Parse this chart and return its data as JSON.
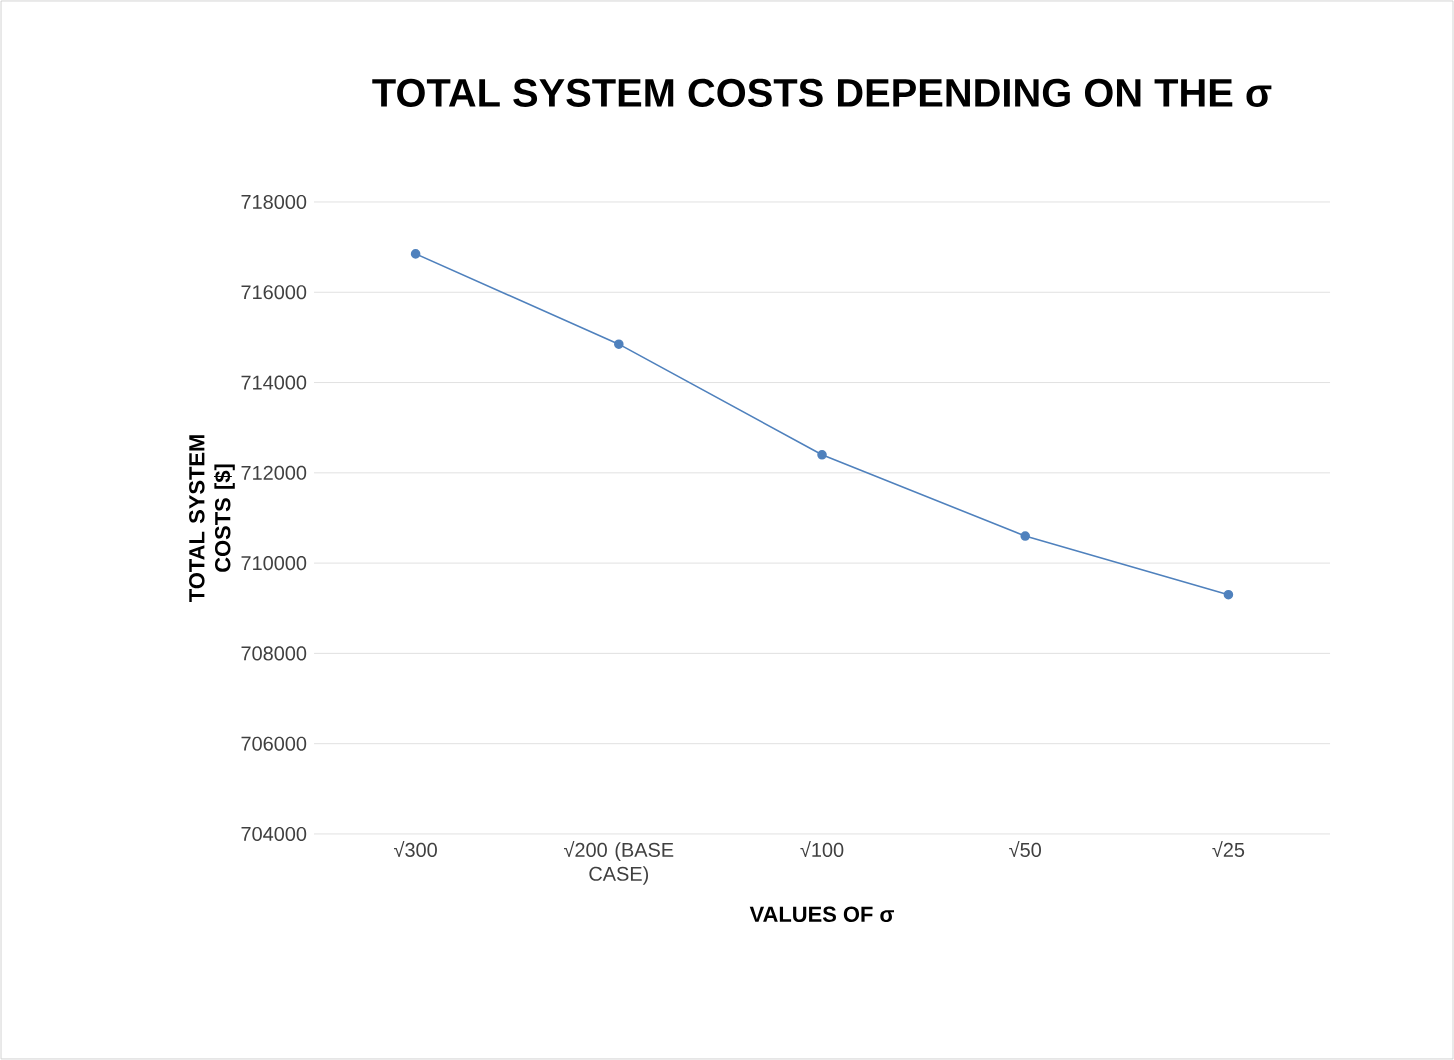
{
  "chart_data": {
    "type": "line",
    "title": "TOTAL SYSTEM COSTS DEPENDING ON THE σ",
    "xlabel": "VALUES OF σ",
    "ylabel": "TOTAL SYSTEM COSTS [$]",
    "categories": [
      "√300",
      "√200 (BASE CASE)",
      "√100",
      "√50",
      "√25"
    ],
    "series": [
      {
        "color": "#4f81bd",
        "values": [
          716850,
          714850,
          712400,
          710600,
          709300
        ]
      }
    ],
    "ylim": [
      704000,
      718000
    ],
    "yticks": [
      704000,
      706000,
      708000,
      710000,
      712000,
      714000,
      716000,
      718000
    ],
    "grid": "y",
    "marker": "circle",
    "line_style": "solid"
  }
}
